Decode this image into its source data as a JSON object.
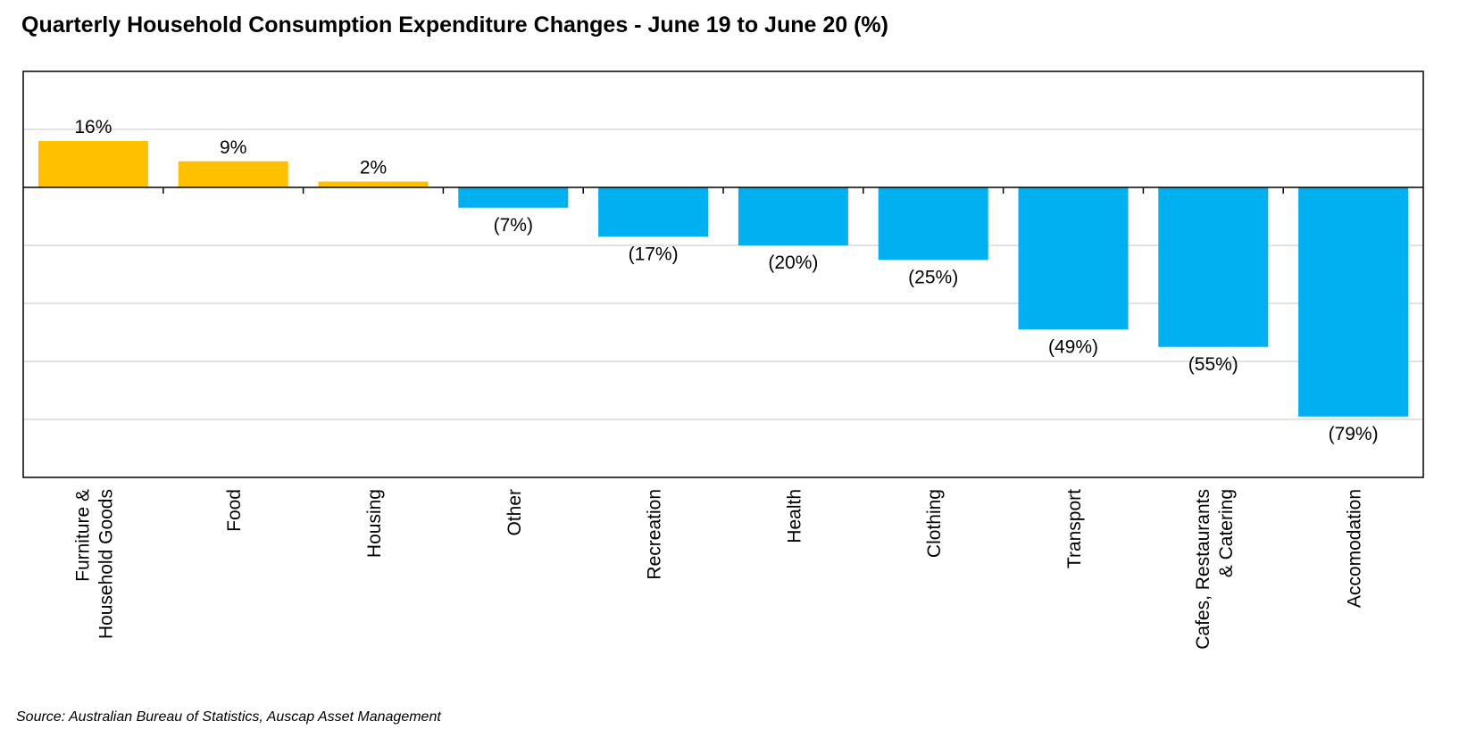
{
  "title": "Quarterly Household Consumption Expenditure Changes - June 19 to June 20 (%)",
  "source": "Source: Australian Bureau of Statistics, Auscap Asset Management",
  "colors": {
    "positive": "#FFC000",
    "negative": "#00B0F0",
    "grid": "#D9D9D9",
    "axis": "#000000"
  },
  "chart_data": {
    "type": "bar",
    "categories": [
      "Furniture & Household Goods",
      "Food",
      "Housing",
      "Other",
      "Recreation",
      "Health",
      "Clothing",
      "Transport",
      "Cafes, Restaurants & Catering",
      "Accomodation"
    ],
    "category_label_lines": [
      [
        "Furniture &",
        "Household Goods"
      ],
      [
        "Food"
      ],
      [
        "Housing"
      ],
      [
        "Other"
      ],
      [
        "Recreation"
      ],
      [
        "Health"
      ],
      [
        "Clothing"
      ],
      [
        "Transport"
      ],
      [
        "Cafes, Restaurants",
        "& Catering"
      ],
      [
        "Accomodation"
      ]
    ],
    "values": [
      16,
      9,
      2,
      -7,
      -17,
      -20,
      -25,
      -49,
      -55,
      -79
    ],
    "data_labels": [
      "16%",
      "9%",
      "2%",
      "(7%)",
      "(17%)",
      "(20%)",
      "(25%)",
      "(49%)",
      "(55%)",
      "(79%)"
    ],
    "ylim": [
      -100,
      40
    ],
    "gridlines": [
      20,
      -20,
      -40,
      -60,
      -80
    ],
    "y_tick_labels_shown": false,
    "legend": "none",
    "grid": true
  }
}
